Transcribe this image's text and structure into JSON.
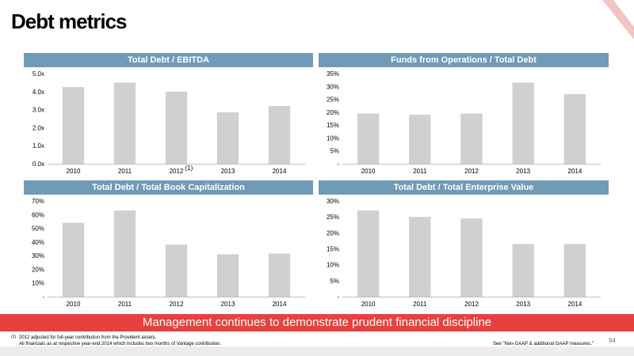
{
  "title": "Debt metrics",
  "banner": "Management continues to demonstrate prudent financial discipline",
  "footnote": {
    "marker": "(1)",
    "line1": "2012 adjusted for full-year contribution from the Provident assets.",
    "line2": "All financials as at respective year-end 2014 which includes two months of Vantage contribution.",
    "right": "See \"Non-GAAP & additional GAAP measures.\""
  },
  "page_number": "94",
  "colors": {
    "header": "#6f9bb7",
    "bar": "#d0d0d0",
    "banner": "#e8413d"
  },
  "chart_data": [
    {
      "type": "bar",
      "title": "Total Debt / EBITDA",
      "categories": [
        "2010",
        "2011",
        "2012",
        "2013",
        "2014"
      ],
      "category_note": {
        "index": 2,
        "text": "(1)"
      },
      "values": [
        4.25,
        4.5,
        4.0,
        2.85,
        3.2
      ],
      "ylim": [
        0,
        5
      ],
      "yticks": [
        0,
        1,
        2,
        3,
        4,
        5
      ],
      "ytick_labels": [
        "0.0x",
        "1.0x",
        "2.0x",
        "3.0x",
        "4.0x",
        "5.0x"
      ],
      "grid": false
    },
    {
      "type": "bar",
      "title": "Funds from Operations / Total Debt",
      "categories": [
        "2010",
        "2011",
        "2012",
        "2013",
        "2014"
      ],
      "values": [
        19.5,
        19,
        19.5,
        31.5,
        27
      ],
      "ylim": [
        0,
        35
      ],
      "yticks": [
        0,
        5,
        10,
        15,
        20,
        25,
        30,
        35
      ],
      "ytick_labels": [
        "-",
        "5%",
        "10%",
        "15%",
        "20%",
        "25%",
        "30%",
        "35%"
      ],
      "grid": false
    },
    {
      "type": "bar",
      "title": "Total Debt / Total Book Capitalization",
      "categories": [
        "2010",
        "2011",
        "2012",
        "2013",
        "2014"
      ],
      "values": [
        54,
        63,
        38,
        31,
        31.5
      ],
      "ylim": [
        0,
        70
      ],
      "yticks": [
        0,
        10,
        20,
        30,
        40,
        50,
        60,
        70
      ],
      "ytick_labels": [
        "-",
        "10%",
        "20%",
        "30%",
        "40%",
        "50%",
        "60%",
        "70%"
      ],
      "grid": false
    },
    {
      "type": "bar",
      "title": "Total Debt / Total Enterprise Value",
      "categories": [
        "2010",
        "2011",
        "2012",
        "2013",
        "2014"
      ],
      "values": [
        27,
        25,
        24.5,
        16.5,
        16.5
      ],
      "ylim": [
        0,
        30
      ],
      "yticks": [
        0,
        5,
        10,
        15,
        20,
        25,
        30
      ],
      "ytick_labels": [
        "-",
        "5%",
        "10%",
        "15%",
        "20%",
        "25%",
        "30%"
      ],
      "grid": false
    }
  ]
}
